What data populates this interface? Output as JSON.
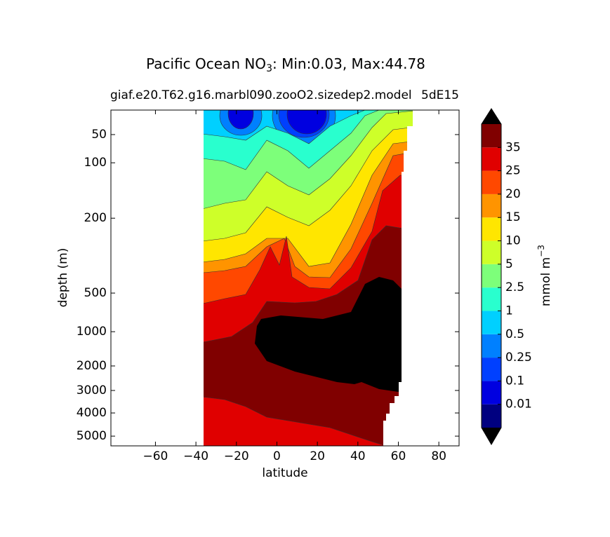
{
  "chart_data": {
    "type": "contour",
    "title_prefix": "Pacific Ocean NO",
    "title_subscript": "3",
    "title_suffix": ": Min:0.03, Max:44.78",
    "left_title": "giaf.e20.T62.g16.marbl090.zooO2.sizedep2.model",
    "right_title": "5dE15",
    "x_label": "latitude",
    "y_label": "depth (m)",
    "xlim": [
      -82,
      90
    ],
    "xticks": [
      {
        "value": -60,
        "label": "−60"
      },
      {
        "value": -40,
        "label": "−40"
      },
      {
        "value": -20,
        "label": "−20"
      },
      0,
      20,
      40,
      60,
      80
    ],
    "ylim": [
      0,
      5500
    ],
    "y_inverted": true,
    "yticks": [
      50,
      100,
      200,
      500,
      1000,
      2000,
      3000,
      4000,
      5000
    ],
    "colorbar": {
      "levels": [
        0.01,
        0.1,
        0.25,
        0.5,
        1,
        2.5,
        5,
        10,
        15,
        20,
        25,
        35
      ],
      "colors": [
        "#000080",
        "#0000e0",
        "#0040ff",
        "#0080ff",
        "#00d0ff",
        "#29ffce",
        "#7dff7a",
        "#ceff29",
        "#ffe600",
        "#ff9400",
        "#ff4800",
        "#e00000",
        "#800000"
      ],
      "extend_color": "#000000",
      "label": "mmol m",
      "label_superscript": "−3"
    }
  }
}
